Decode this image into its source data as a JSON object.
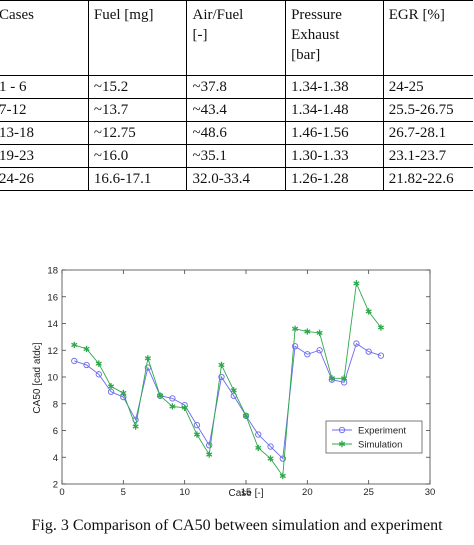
{
  "table": {
    "headers": [
      [
        "Cases"
      ],
      [
        "Fuel [mg]"
      ],
      [
        "Air/Fuel",
        "[-]"
      ],
      [
        "Pressure",
        "Exhaust",
        "[bar]"
      ],
      [
        "EGR [%]"
      ]
    ],
    "rows": [
      [
        "1 - 6",
        "~15.2",
        "~37.8",
        "1.34-1.38",
        "24-25"
      ],
      [
        "7-12",
        "~13.7",
        "~43.4",
        "1.34-1.48",
        "25.5-26.75"
      ],
      [
        "13-18",
        "~12.75",
        "~48.6",
        "1.46-1.56",
        "26.7-28.1"
      ],
      [
        "19-23",
        "~16.0",
        "~35.1",
        "1.30-1.33",
        "23.1-23.7"
      ],
      [
        "24-26",
        "16.6-17.1",
        "32.0-33.4",
        "1.26-1.28",
        "21.82-22.6"
      ]
    ]
  },
  "chart_data": {
    "type": "line",
    "xlabel": "Case [-]",
    "ylabel": "CA50 [cad atdc]",
    "xlim": [
      0,
      30
    ],
    "ylim": [
      2,
      18
    ],
    "xticks": [
      0,
      5,
      10,
      15,
      20,
      25,
      30
    ],
    "yticks": [
      2,
      4,
      6,
      8,
      10,
      12,
      14,
      16,
      18
    ],
    "grid": false,
    "legend_position": "bottom-right",
    "series": [
      {
        "name": "Experiment",
        "color": "#6b6bf0",
        "marker": "circle",
        "x": [
          1,
          2,
          3,
          4,
          5,
          6,
          7,
          8,
          9,
          10,
          11,
          12,
          13,
          14,
          15,
          16,
          17,
          18,
          19,
          20,
          21,
          22,
          23,
          24,
          25,
          26
        ],
        "y": [
          11.2,
          10.9,
          10.2,
          8.9,
          8.5,
          6.8,
          10.7,
          8.6,
          8.4,
          7.9,
          6.4,
          4.9,
          10.0,
          8.6,
          7.1,
          5.7,
          4.8,
          3.9,
          12.3,
          11.7,
          12.0,
          9.8,
          9.6,
          12.5,
          11.9,
          11.6
        ]
      },
      {
        "name": "Simulation",
        "color": "#2ea84a",
        "marker": "star",
        "x": [
          1,
          2,
          3,
          4,
          5,
          6,
          7,
          8,
          9,
          10,
          11,
          12,
          13,
          14,
          15,
          16,
          17,
          18,
          19,
          20,
          21,
          22,
          23,
          24,
          25,
          26
        ],
        "y": [
          12.4,
          12.1,
          11.0,
          9.3,
          8.8,
          6.3,
          11.4,
          8.6,
          7.8,
          7.7,
          5.7,
          4.2,
          10.9,
          9.0,
          7.1,
          4.7,
          3.9,
          2.6,
          13.6,
          13.4,
          13.3,
          9.9,
          9.9,
          17.0,
          14.9,
          13.7
        ]
      }
    ]
  },
  "caption": "Fig. 3 Comparison of CA50 between simulation and experiment"
}
